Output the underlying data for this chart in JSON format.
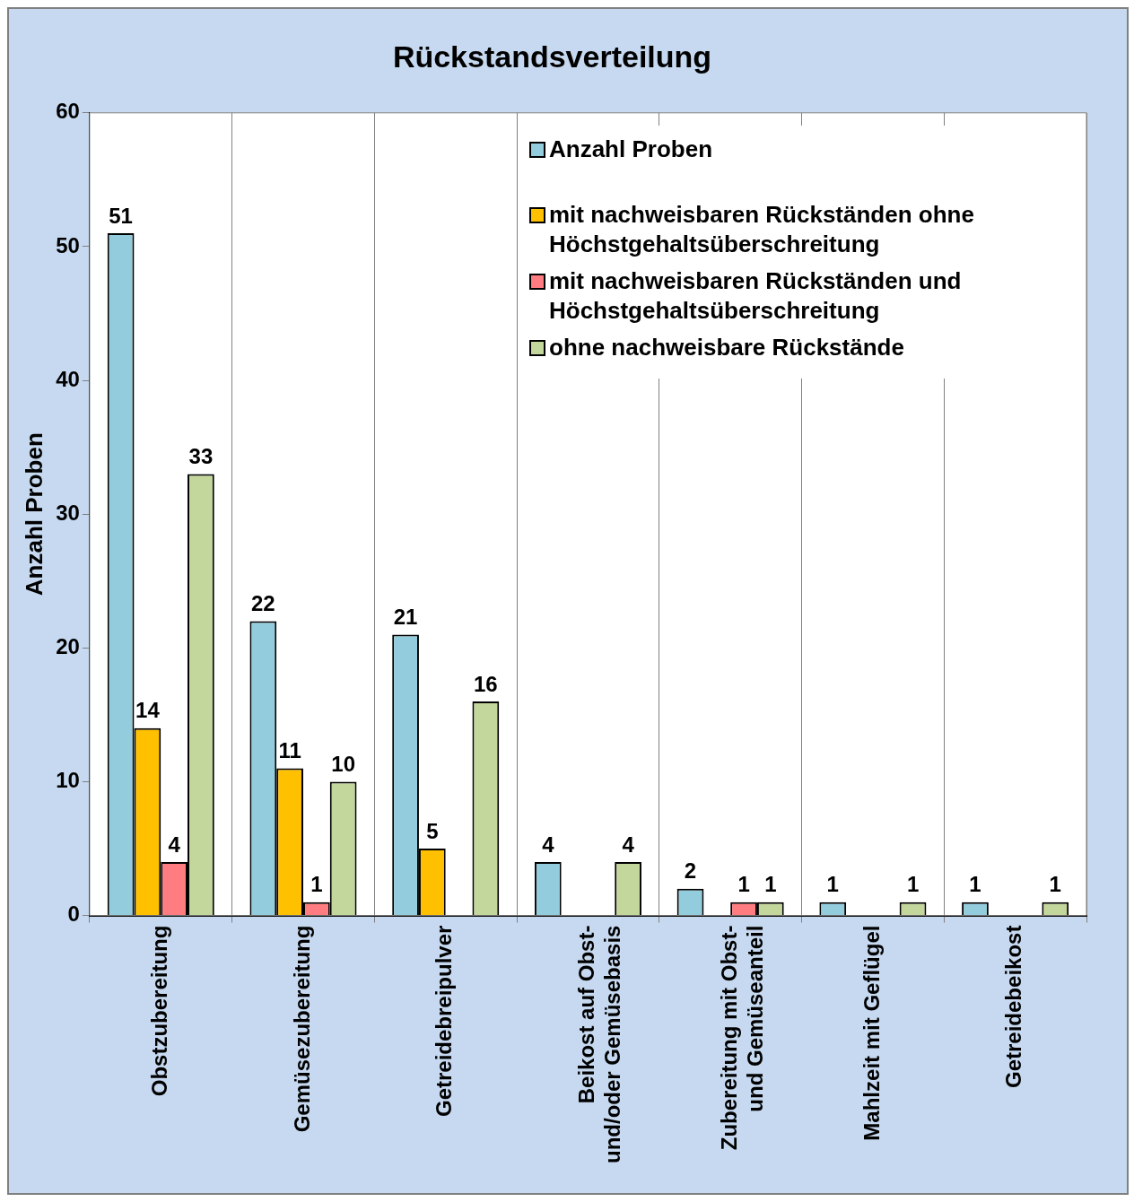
{
  "chart_data": {
    "type": "bar",
    "title": "Rückstandsverteilung",
    "ylabel": "Anzahl Proben",
    "categories": [
      "Obstzubereitung",
      "Gemüsezubereitung",
      "Getreidebreipulver",
      "Beikost auf Obst- und/oder Gemüsebasis",
      "Zubereitung mit Obst- und Gemüseanteil",
      "Mahlzeit mit Geflügel",
      "Getreidebeikost"
    ],
    "series": [
      {
        "name": "Anzahl Proben",
        "color": "#93cddd",
        "values": [
          51,
          22,
          21,
          4,
          2,
          1,
          1
        ]
      },
      {
        "name": "mit nachweisbaren Rückständen ohne Höchstgehaltsüberschreitung",
        "color": "#ffc000",
        "values": [
          14,
          11,
          5,
          null,
          null,
          null,
          null
        ]
      },
      {
        "name": "mit nachweisbaren Rückständen und Höchstgehaltsüberschreitung",
        "color": "#ff7c80",
        "values": [
          4,
          1,
          null,
          null,
          1,
          null,
          null
        ]
      },
      {
        "name": "ohne nachweisbare Rückstände",
        "color": "#c3d69b",
        "values": [
          33,
          10,
          16,
          4,
          1,
          1,
          1
        ]
      }
    ],
    "ylim": [
      0,
      60
    ],
    "yticks": [
      0,
      10,
      20,
      30,
      40,
      50,
      60
    ],
    "grid": "x",
    "legend": "top right",
    "data_labels": true
  }
}
